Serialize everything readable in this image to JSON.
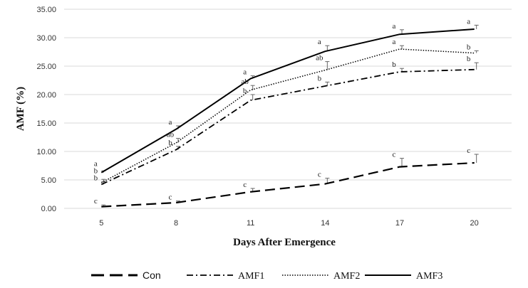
{
  "chart_data": {
    "type": "line",
    "xlabel": "Days After Emergence",
    "ylabel": "AMF (%)",
    "x": [
      "5",
      "8",
      "11",
      "14",
      "17",
      "20"
    ],
    "ylim": [
      0,
      35
    ],
    "yticks": [
      "0.00",
      "5.00",
      "10.00",
      "15.00",
      "20.00",
      "25.00",
      "30.00",
      "35.00"
    ],
    "grid": true,
    "legend_position": "bottom",
    "series": [
      {
        "name": "Con",
        "style": "long-dash",
        "values": [
          0.3,
          1.0,
          2.9,
          4.3,
          7.3,
          8.0
        ],
        "errors": [
          0.3,
          0.3,
          0.6,
          1.0,
          1.5,
          1.5
        ],
        "letters": [
          "c",
          "c",
          "c",
          "c",
          "c",
          "c"
        ]
      },
      {
        "name": "AMF1",
        "style": "dash-dot",
        "values": [
          4.2,
          10.3,
          19.0,
          21.5,
          24.0,
          24.4
        ],
        "errors": [
          0.5,
          0.6,
          1.0,
          0.7,
          0.6,
          1.2
        ],
        "letters": [
          "b",
          "b",
          "b",
          "b",
          "b",
          "b"
        ]
      },
      {
        "name": "AMF2",
        "style": "dotted",
        "values": [
          4.5,
          11.5,
          20.8,
          24.3,
          28.0,
          27.3
        ],
        "errors": [
          0.6,
          0.8,
          0.8,
          1.5,
          0.6,
          0.4
        ],
        "letters": [
          "b",
          "ab",
          "ab",
          "ab",
          "a",
          "b"
        ]
      },
      {
        "name": "AMF3",
        "style": "solid",
        "values": [
          6.3,
          13.9,
          22.8,
          27.6,
          30.6,
          31.5
        ],
        "errors": [
          0.3,
          0.6,
          0.5,
          1.0,
          0.8,
          0.7
        ],
        "letters": [
          "a",
          "a",
          "a",
          "a",
          "a",
          "a"
        ]
      }
    ]
  }
}
